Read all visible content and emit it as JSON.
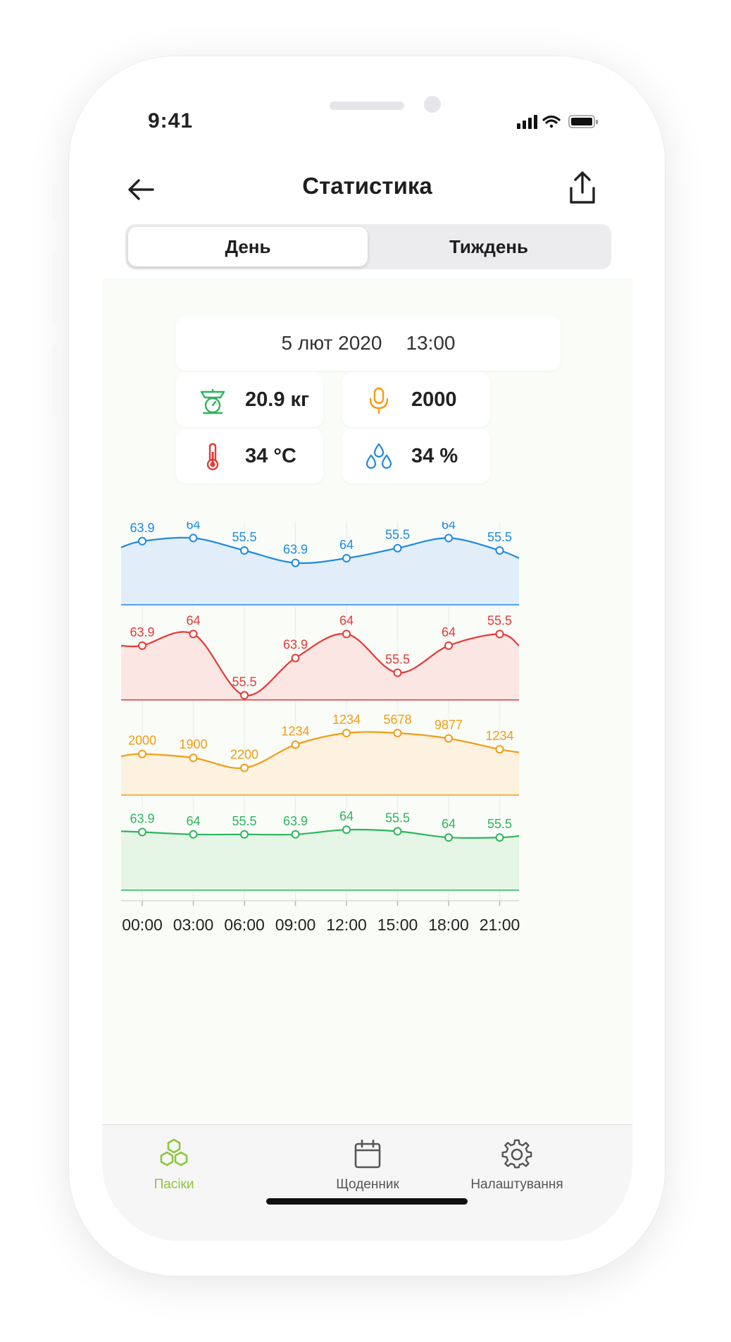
{
  "status_bar": {
    "time": "9:41"
  },
  "header": {
    "title": "Статистика"
  },
  "segments": {
    "day": "День",
    "week": "Тиждень"
  },
  "date_card": {
    "date": "5 лют 2020",
    "time": "13:00"
  },
  "metrics": {
    "weight": {
      "value": "20.9 кг",
      "icon": "scale-icon",
      "color": "#2db55d"
    },
    "sound": {
      "value": "2000",
      "icon": "microphone-icon",
      "color": "#f39c12"
    },
    "temperature": {
      "value": "34 °C",
      "icon": "thermometer-icon",
      "color": "#e53935"
    },
    "humidity": {
      "value": "34 %",
      "icon": "droplets-icon",
      "color": "#1e88e5"
    }
  },
  "chart_data": {
    "type": "area",
    "x": [
      "00:00",
      "03:00",
      "06:00",
      "09:00",
      "12:00",
      "15:00",
      "18:00",
      "21:00"
    ],
    "series": [
      {
        "name": "humidity",
        "color": "#1e88e5",
        "fill": "#e1eefa",
        "labels": [
          "63.9",
          "64",
          "55.5",
          "63.9",
          "64",
          "55.5",
          "64",
          "55.5"
        ],
        "level": [
          0.82,
          0.86,
          0.7,
          0.54,
          0.6,
          0.73,
          0.86,
          0.7
        ],
        "edge_level": [
          0.74,
          0.6
        ]
      },
      {
        "name": "temperature",
        "color": "#e53935",
        "fill": "#fbe6e4",
        "labels": [
          "63.9",
          "64",
          "55.5",
          "63.9",
          "64",
          "55.5",
          "64",
          "55.5"
        ],
        "level": [
          0.7,
          0.85,
          0.06,
          0.54,
          0.85,
          0.35,
          0.7,
          0.85
        ],
        "edge_level": [
          0.7,
          0.7
        ]
      },
      {
        "name": "sound",
        "color": "#f39c12",
        "fill": "#fdf1e0",
        "labels": [
          "2000",
          "1900",
          "2200",
          "1234",
          "1234",
          "5678",
          "9877",
          "1234"
        ],
        "level": [
          0.53,
          0.48,
          0.35,
          0.65,
          0.8,
          0.8,
          0.73,
          0.59
        ],
        "edge_level": [
          0.5,
          0.55
        ]
      },
      {
        "name": "weight",
        "color": "#2db55d",
        "fill": "#e5f5e6",
        "labels": [
          "63.9",
          "64",
          "55.5",
          "63.9",
          "64",
          "55.5",
          "64",
          "55.5"
        ],
        "level": [
          0.75,
          0.72,
          0.72,
          0.72,
          0.78,
          0.76,
          0.68,
          0.68
        ],
        "edge_level": [
          0.76,
          0.7
        ]
      }
    ]
  },
  "tabbar": {
    "apiaries": "Пасіки",
    "diary": "Щоденник",
    "settings": "Налаштування",
    "active_color": "#8cc63f"
  }
}
